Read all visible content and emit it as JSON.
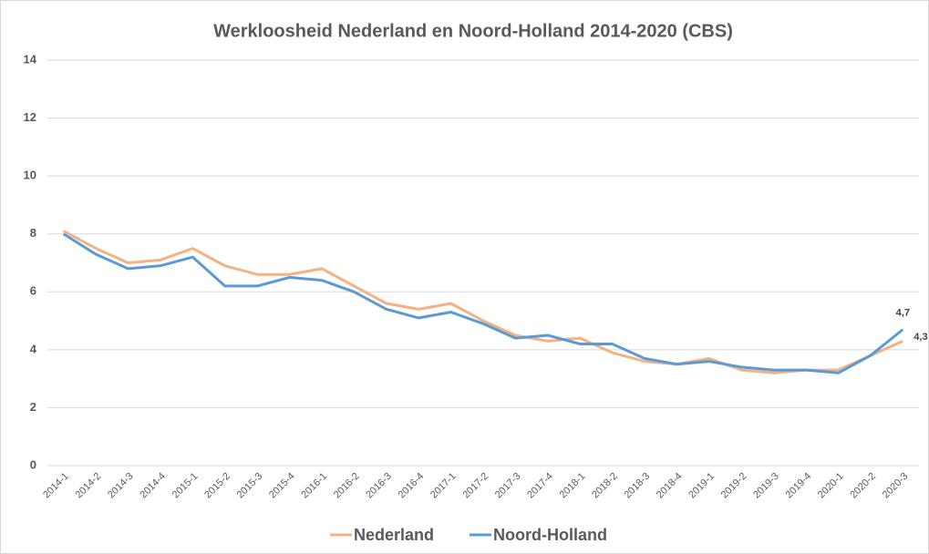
{
  "chart_data": {
    "type": "line",
    "title": "Werkloosheid Nederland en Noord-Holland 2014-2020 (CBS)",
    "categories": [
      "2014-1",
      "2014-2",
      "2014-3",
      "2014-4",
      "2015-1",
      "2015-2",
      "2015-3",
      "2015-4",
      "2016-1",
      "2016-2",
      "2016-3",
      "2016-4",
      "2017-1",
      "2017-2",
      "2017-3",
      "2017-4",
      "2018-1",
      "2018-2",
      "2018-3",
      "2018-4",
      "2019-1",
      "2019-2",
      "2019-3",
      "2019-4",
      "2020-1",
      "2020-2",
      "2020-3"
    ],
    "series": [
      {
        "name": "Nederland",
        "color": "#f4b183",
        "values": [
          8.1,
          7.5,
          7.0,
          7.1,
          7.5,
          6.9,
          6.6,
          6.6,
          6.8,
          6.2,
          5.6,
          5.4,
          5.6,
          5.0,
          4.5,
          4.3,
          4.4,
          3.9,
          3.6,
          3.5,
          3.7,
          3.3,
          3.2,
          3.3,
          3.3,
          3.8,
          4.3
        ],
        "value_labels": [
          null,
          null,
          null,
          null,
          null,
          null,
          null,
          null,
          null,
          null,
          null,
          null,
          null,
          null,
          null,
          null,
          null,
          null,
          null,
          null,
          null,
          null,
          null,
          null,
          null,
          null,
          "4,3"
        ]
      },
      {
        "name": "Noord-Holland",
        "color": "#5b9bd5",
        "values": [
          8.0,
          7.3,
          6.8,
          6.9,
          7.2,
          6.2,
          6.2,
          6.5,
          6.4,
          6.0,
          5.4,
          5.1,
          5.3,
          4.9,
          4.4,
          4.5,
          4.2,
          4.2,
          3.7,
          3.5,
          3.6,
          3.4,
          3.3,
          3.3,
          3.2,
          3.8,
          4.7
        ],
        "value_labels": [
          null,
          null,
          null,
          null,
          null,
          null,
          null,
          null,
          null,
          null,
          null,
          null,
          null,
          null,
          null,
          null,
          null,
          null,
          null,
          null,
          null,
          null,
          null,
          null,
          null,
          null,
          "4,7"
        ]
      }
    ],
    "ylim": [
      0,
      14
    ],
    "yticks": [
      0,
      2,
      4,
      6,
      8,
      10,
      12,
      14
    ],
    "grid": true,
    "legend": "bottom"
  }
}
